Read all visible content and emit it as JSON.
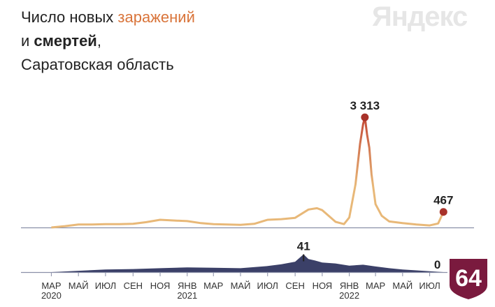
{
  "header": {
    "title_prefix": "Число новых ",
    "title_accent": "заражений",
    "title_line2_prefix": "и ",
    "title_line2_bold": "смертей",
    "title_line2_suffix": ",",
    "title_line3": "Саратовская область"
  },
  "logo": {
    "text": "Яндекс"
  },
  "badge": {
    "text": "64",
    "color": "#7a1a3e"
  },
  "colors": {
    "cases_line": "#e8b878",
    "cases_peak": "#c04030",
    "deaths_fill": "#3b4068",
    "axis": "#8a8fa8"
  },
  "chart_data": [
    {
      "type": "line",
      "name": "cases",
      "x": [
        "2020-03-01",
        "2020-04-01",
        "2020-05-01",
        "2020-06-01",
        "2020-07-01",
        "2020-08-01",
        "2020-09-01",
        "2020-10-01",
        "2020-11-01",
        "2020-12-01",
        "2021-01-01",
        "2021-02-01",
        "2021-03-01",
        "2021-04-01",
        "2021-05-01",
        "2021-06-01",
        "2021-07-01",
        "2021-08-01",
        "2021-09-01",
        "2021-10-01",
        "2021-10-20",
        "2021-11-01",
        "2021-11-20",
        "2021-12-01",
        "2021-12-20",
        "2022-01-01",
        "2022-01-15",
        "2022-01-25",
        "2022-02-01",
        "2022-02-05",
        "2022-02-10",
        "2022-02-15",
        "2022-02-20",
        "2022-03-01",
        "2022-03-15",
        "2022-04-01",
        "2022-05-01",
        "2022-06-01",
        "2022-07-01",
        "2022-07-20",
        "2022-08-01"
      ],
      "values": [
        0,
        40,
        90,
        90,
        100,
        100,
        110,
        160,
        230,
        210,
        190,
        130,
        100,
        90,
        80,
        110,
        230,
        250,
        290,
        540,
        580,
        520,
        300,
        170,
        100,
        300,
        1300,
        2500,
        3100,
        3313,
        2800,
        2400,
        1600,
        700,
        350,
        180,
        130,
        90,
        60,
        120,
        467
      ],
      "annotations": [
        {
          "label": "3 313",
          "x": "2022-02-05",
          "value": 3313
        },
        {
          "label": "467",
          "x": "2022-08-01",
          "value": 467
        }
      ],
      "ylim": [
        0,
        3400
      ]
    },
    {
      "type": "area",
      "name": "deaths",
      "x": [
        "2020-03-01",
        "2020-05-01",
        "2020-07-01",
        "2020-09-01",
        "2020-11-01",
        "2021-01-01",
        "2021-03-01",
        "2021-05-01",
        "2021-07-01",
        "2021-08-01",
        "2021-09-01",
        "2021-09-20",
        "2021-10-01",
        "2021-10-15",
        "2021-11-01",
        "2021-12-01",
        "2022-01-01",
        "2022-02-01",
        "2022-03-01",
        "2022-04-01",
        "2022-05-01",
        "2022-06-01",
        "2022-07-01",
        "2022-08-01"
      ],
      "values": [
        0,
        3,
        6,
        7,
        9,
        11,
        10,
        9,
        14,
        18,
        24,
        41,
        30,
        27,
        22,
        20,
        15,
        17,
        13,
        9,
        6,
        4,
        2,
        0
      ],
      "annotations": [
        {
          "label": "41",
          "x": "2021-09-20",
          "value": 41
        },
        {
          "label": "0",
          "x": "2022-08-01",
          "value": 0
        }
      ],
      "ylim": [
        0,
        45
      ]
    }
  ],
  "x_axis": {
    "range": [
      "2020-02-01",
      "2022-08-10"
    ],
    "ticks": [
      {
        "label": "МАР",
        "year": "2020",
        "date": "2020-03-01"
      },
      {
        "label": "МАЙ",
        "year": "",
        "date": "2020-05-01"
      },
      {
        "label": "ИЮЛ",
        "year": "",
        "date": "2020-07-01"
      },
      {
        "label": "СЕН",
        "year": "",
        "date": "2020-09-01"
      },
      {
        "label": "НОЯ",
        "year": "",
        "date": "2020-11-01"
      },
      {
        "label": "ЯНВ",
        "year": "2021",
        "date": "2021-01-01"
      },
      {
        "label": "МАР",
        "year": "",
        "date": "2021-03-01"
      },
      {
        "label": "МАЙ",
        "year": "",
        "date": "2021-05-01"
      },
      {
        "label": "ИЮЛ",
        "year": "",
        "date": "2021-07-01"
      },
      {
        "label": "СЕН",
        "year": "",
        "date": "2021-09-01"
      },
      {
        "label": "НОЯ",
        "year": "",
        "date": "2021-11-01"
      },
      {
        "label": "ЯНВ",
        "year": "2022",
        "date": "2022-01-01"
      },
      {
        "label": "МАР",
        "year": "",
        "date": "2022-03-01"
      },
      {
        "label": "МАЙ",
        "year": "",
        "date": "2022-05-01"
      },
      {
        "label": "ИЮЛ",
        "year": "",
        "date": "2022-07-01"
      }
    ]
  }
}
